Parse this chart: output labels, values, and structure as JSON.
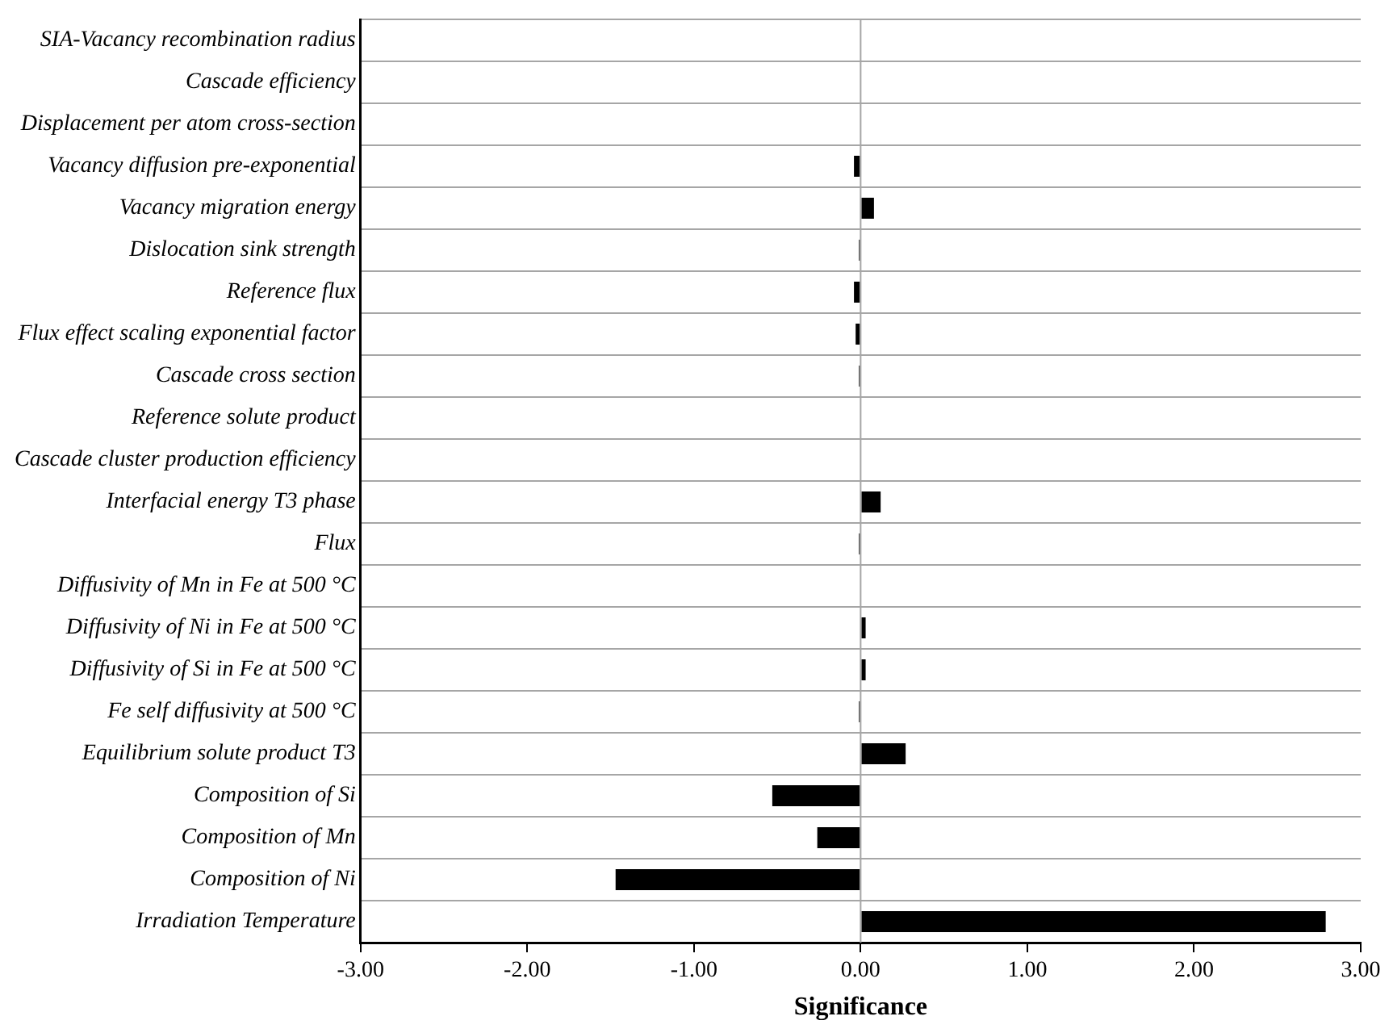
{
  "chart_data": {
    "type": "bar",
    "orientation": "horizontal",
    "xlabel": "Significance",
    "categories": [
      "SIA-Vacancy recombination radius",
      "Cascade efficiency",
      "Displacement per atom cross-section",
      "Vacancy diffusion pre-exponential",
      "Vacancy migration energy",
      "Dislocation sink strength",
      "Reference flux",
      "Flux effect scaling exponential factor",
      "Cascade cross section",
      "Reference solute product",
      "Cascade cluster production efficiency",
      "Interfacial energy T3 phase",
      "Flux",
      "Diffusivity of Mn in Fe at 500 °C",
      "Diffusivity of Ni in Fe at 500 °C",
      "Diffusivity of Si in Fe at 500 °C",
      "Fe self diffusivity at 500 °C",
      "Equilibrium solute product T3",
      "Composition of Si",
      "Composition of Mn",
      "Composition of Ni",
      "Irradiation Temperature"
    ],
    "values": [
      0,
      0,
      0,
      -0.04,
      0.08,
      -0.01,
      -0.04,
      -0.03,
      -0.01,
      0,
      0,
      0.12,
      -0.01,
      0,
      0.03,
      0.03,
      -0.01,
      0.27,
      -0.53,
      -0.26,
      -1.47,
      2.79
    ],
    "color": "#000000",
    "xlim": [
      -3,
      3
    ],
    "xticks": [
      {
        "value": -3,
        "label": "-3.00"
      },
      {
        "value": -2,
        "label": "-2.00"
      },
      {
        "value": -1,
        "label": "-1.00"
      },
      {
        "value": 0,
        "label": "0.00"
      },
      {
        "value": 1,
        "label": "1.00"
      },
      {
        "value": 2,
        "label": "2.00"
      },
      {
        "value": 3,
        "label": "3.00"
      }
    ],
    "ref_lines": [
      {
        "axis": "x",
        "value": 0,
        "color": "#a6a6a6"
      }
    ],
    "grid": "y",
    "legend": false
  }
}
